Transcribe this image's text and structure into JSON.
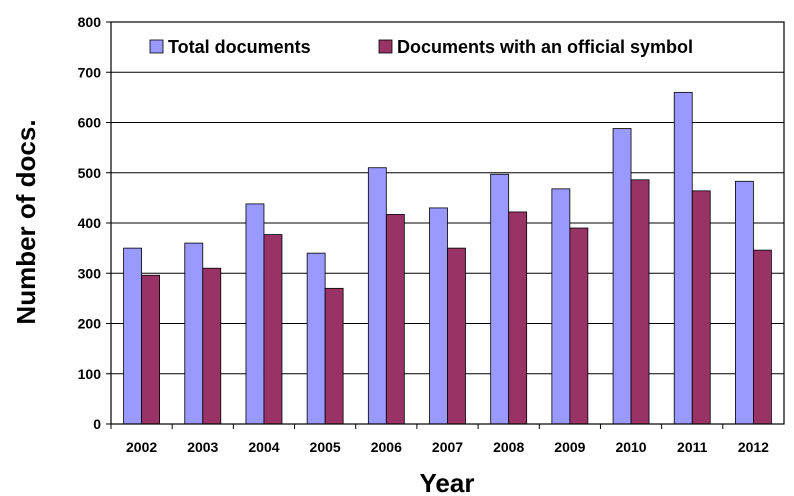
{
  "chart_data": {
    "type": "bar",
    "categories": [
      "2002",
      "2003",
      "2004",
      "2005",
      "2006",
      "2007",
      "2008",
      "2009",
      "2010",
      "2011",
      "2012"
    ],
    "series": [
      {
        "name": "Total documents",
        "color": "#9999FF",
        "values": [
          350,
          360,
          438,
          340,
          510,
          430,
          497,
          468,
          588,
          660,
          483
        ]
      },
      {
        "name": "Documents with an official symbol",
        "color": "#993366",
        "values": [
          296,
          310,
          377,
          270,
          417,
          350,
          422,
          390,
          486,
          464,
          346
        ]
      }
    ],
    "title": "",
    "xlabel": "Year",
    "ylabel": "Number of docs.",
    "ylim": [
      0,
      800
    ],
    "yticks": [
      "0",
      "100",
      "200",
      "300",
      "400",
      "500",
      "600",
      "700",
      "800"
    ],
    "grid": true,
    "legend_position": "top"
  }
}
